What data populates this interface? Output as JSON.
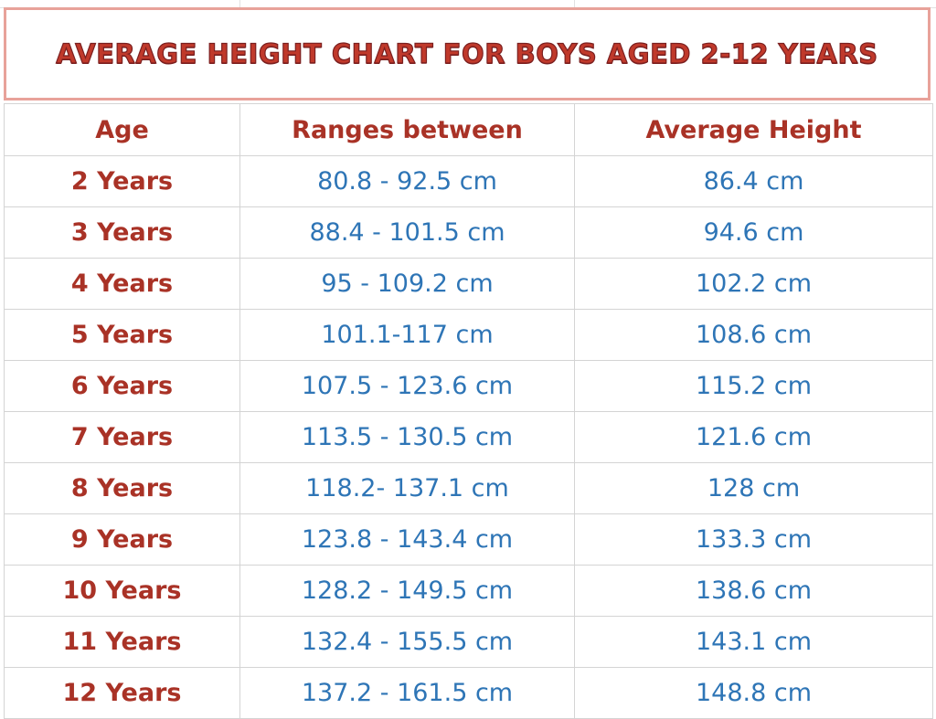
{
  "title": "Average Height Chart for Boys Aged 2-12 Years",
  "columns": [
    "Age",
    "Ranges between",
    "Average Height"
  ],
  "rows": [
    {
      "age": "2 Years",
      "range": "80.8 - 92.5 cm",
      "avg": "86.4 cm"
    },
    {
      "age": "3 Years",
      "range": "88.4 - 101.5 cm",
      "avg": "94.6 cm"
    },
    {
      "age": "4 Years",
      "range": "95 - 109.2 cm",
      "avg": "102.2 cm"
    },
    {
      "age": "5 Years",
      "range": "101.1-117 cm",
      "avg": "108.6 cm"
    },
    {
      "age": "6 Years",
      "range": "107.5 - 123.6 cm",
      "avg": "115.2 cm"
    },
    {
      "age": "7 Years",
      "range": "113.5 - 130.5 cm",
      "avg": "121.6 cm"
    },
    {
      "age": "8 Years",
      "range": "118.2- 137.1 cm",
      "avg": "128 cm"
    },
    {
      "age": "9 Years",
      "range": "123.8 - 143.4 cm",
      "avg": "133.3 cm"
    },
    {
      "age": "10 Years",
      "range": "128.2 - 149.5 cm",
      "avg": "138.6 cm"
    },
    {
      "age": "11 Years",
      "range": "132.4 - 155.5 cm",
      "avg": "143.1 cm"
    },
    {
      "age": "12 Years",
      "range": "137.2 - 161.5 cm",
      "avg": "148.8 cm"
    }
  ],
  "colors": {
    "title": "#c0392b",
    "title_border": "#e8a29a",
    "age_text": "#a93226",
    "value_text": "#2e75b6",
    "grid_line": "#d4d4d4"
  }
}
